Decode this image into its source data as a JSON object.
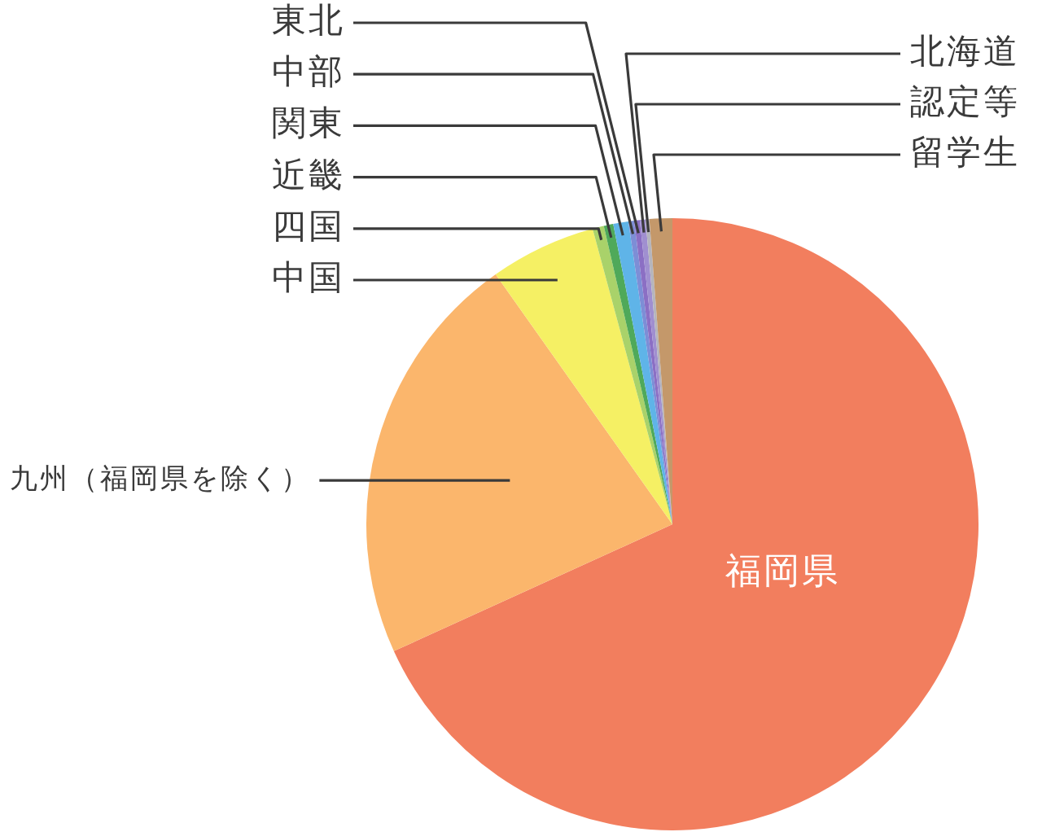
{
  "chart_data": {
    "type": "pie",
    "categories": [
      "福岡県",
      "九州（福岡県を除く）",
      "中国",
      "四国",
      "近畿",
      "関東",
      "中部",
      "東北",
      "北海道",
      "認定等",
      "留学生"
    ],
    "values": [
      68.2,
      22.0,
      5.6,
      0.6,
      0.5,
      0.8,
      0.3,
      0.3,
      0.3,
      0.2,
      1.2
    ],
    "colors": [
      "#f27e5e",
      "#fbb66c",
      "#f5f064",
      "#a9d26a",
      "#4fa95a",
      "#5fb4e8",
      "#7d8ed6",
      "#8b6fc4",
      "#a08fd0",
      "#b5b5bd",
      "#c4986a"
    ]
  }
}
